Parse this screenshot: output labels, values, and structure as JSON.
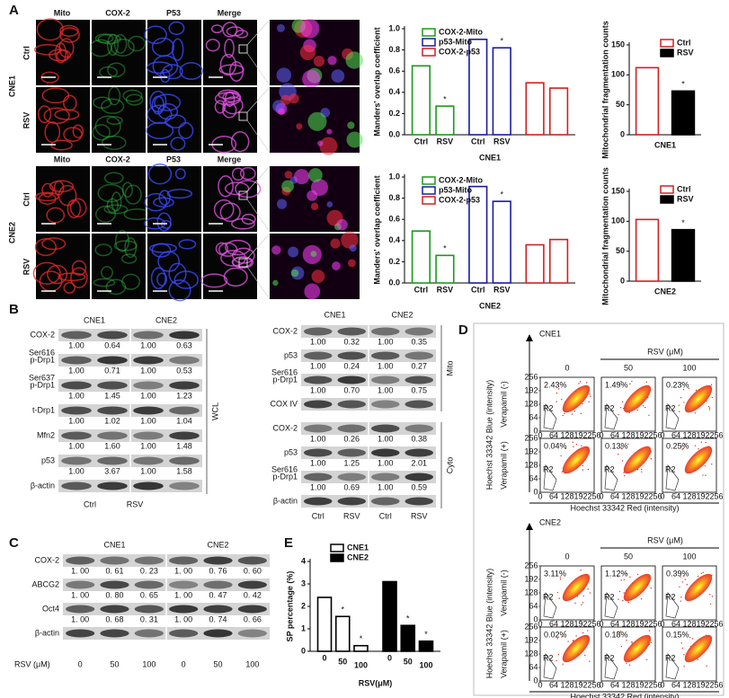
{
  "A": {
    "label": "A",
    "cne1": {
      "name": "CNE1",
      "columns": [
        "Mito",
        "COX-2",
        "P53",
        "Merge"
      ],
      "rows": [
        "Ctrl",
        "RSV"
      ]
    },
    "cne2": {
      "name": "CNE2",
      "columns": [
        "Mito",
        "COX-2",
        "P53",
        "Merge"
      ],
      "rows": [
        "Ctrl",
        "RSV"
      ]
    },
    "overlap1": {
      "ylabel": "Manders' overlap coefficient",
      "xlabel": "CNE1",
      "ylim": [
        0,
        1
      ],
      "yticks": [
        {
          "value": 0,
          "label": "0.0"
        },
        0.2,
        0.4,
        0.6,
        0.8,
        {
          "value": 1,
          "label": "1.0"
        }
      ],
      "categories": [
        "Ctrl",
        "RSV"
      ],
      "series": [
        {
          "name": "COX-2-Mito",
          "color": "#1a9a1a",
          "fill": "none",
          "values": [
            0.65,
            0.27
          ],
          "stars": [
            null,
            "*"
          ]
        },
        {
          "name": "p53-Mito",
          "color": "#1a1aa0",
          "fill": "none",
          "values": [
            0.9,
            0.82
          ],
          "stars": [
            null,
            "*"
          ]
        },
        {
          "name": "COX-2-p53",
          "color": "#d02020",
          "fill": "none",
          "values": [
            0.49,
            0.44
          ],
          "stars": [
            null,
            null
          ]
        }
      ]
    },
    "frag1": {
      "ylabel": "Mitochondrial fragmentation counts",
      "xlabel": "CNE1",
      "ylim": [
        0,
        150
      ],
      "yticks": [
        0,
        50,
        100,
        150
      ],
      "series": [
        {
          "name": "Ctrl",
          "color": "#d02020",
          "fill": "none",
          "values": [
            112
          ],
          "stars": [
            null
          ]
        },
        {
          "name": "RSV",
          "color": "#000000",
          "fill": "#000000",
          "values": [
            73
          ],
          "stars": [
            "*"
          ]
        }
      ]
    },
    "overlap2": {
      "ylabel": "Manders' overlap coefficient",
      "xlabel": "CNE2",
      "ylim": [
        0,
        1
      ],
      "yticks": [
        {
          "value": 0,
          "label": "0.0"
        },
        0.2,
        0.4,
        0.6,
        0.8,
        {
          "value": 1,
          "label": "1.0"
        }
      ],
      "categories": [
        "Ctrl",
        "RSV"
      ],
      "series": [
        {
          "name": "COX-2-Mito",
          "color": "#1a9a1a",
          "fill": "none",
          "values": [
            0.49,
            0.26
          ],
          "stars": [
            null,
            "*"
          ]
        },
        {
          "name": "p53-Mito",
          "color": "#1a1aa0",
          "fill": "none",
          "values": [
            0.91,
            0.77
          ],
          "stars": [
            null,
            "*"
          ]
        },
        {
          "name": "COX-2-p53",
          "color": "#d02020",
          "fill": "none",
          "values": [
            0.36,
            0.41
          ],
          "stars": [
            null,
            null
          ]
        }
      ]
    },
    "frag2": {
      "ylabel": "Mitochondrial fragmentation counts",
      "xlabel": "CNE2",
      "ylim": [
        0,
        150
      ],
      "yticks": [
        0,
        50,
        100,
        150
      ],
      "series": [
        {
          "name": "Ctrl",
          "color": "#d02020",
          "fill": "none",
          "values": [
            103
          ],
          "stars": [
            null
          ]
        },
        {
          "name": "RSV",
          "color": "#000000",
          "fill": "#000000",
          "values": [
            86
          ],
          "stars": [
            "*"
          ]
        }
      ]
    }
  },
  "B": {
    "label": "B",
    "left": {
      "header": [
        "CNE1",
        "CNE2"
      ],
      "side": "WCL",
      "lanes": [
        "Ctrl",
        "RSV"
      ],
      "rows": [
        {
          "name": "COX-2",
          "values": [
            "1.00",
            "0.64",
            "1.00",
            "0.63"
          ]
        },
        {
          "name": "p-Drp1",
          "sup": "Ser616",
          "values": [
            "1.00",
            "0.71",
            "1.00",
            "0.53"
          ]
        },
        {
          "name": "p-Drp1",
          "sup": "Ser637",
          "values": [
            "1.00",
            "1.45",
            "1.00",
            "1.23"
          ]
        },
        {
          "name": "t-Drp1",
          "values": [
            "1.00",
            "1.02",
            "1.00",
            "1.04"
          ]
        },
        {
          "name": "Mfn2",
          "values": [
            "1.00",
            "1.60",
            "1.00",
            "1.48"
          ]
        },
        {
          "name": "p53",
          "values": [
            "1.00",
            "3.67",
            "1.00",
            "1.58"
          ]
        },
        {
          "name": "β-actin"
        }
      ]
    },
    "right": {
      "header": [
        "CNE1",
        "CNE2"
      ],
      "lanes": [
        "Ctrl",
        "RSV",
        "Ctrl",
        "RSV"
      ],
      "mito": {
        "label": "Mito",
        "rows": [
          {
            "name": "COX-2",
            "values": [
              "1.00",
              "0.32",
              "1.00",
              "0.35"
            ]
          },
          {
            "name": "p53",
            "values": [
              "1.00",
              "0.24",
              "1.00",
              "0.27"
            ]
          },
          {
            "name": "p-Drp1",
            "sup": "Ser616",
            "values": [
              "1.00",
              "0.70",
              "1.00",
              "0.75"
            ]
          },
          {
            "name": "COX IV"
          }
        ]
      },
      "cyto": {
        "label": "Cyto",
        "rows": [
          {
            "name": "COX-2",
            "values": [
              "1.00",
              "0.26",
              "1.00",
              "0.38"
            ]
          },
          {
            "name": "p53",
            "values": [
              "1.00",
              "1.25",
              "1.00",
              "2.01"
            ]
          },
          {
            "name": "p-Drp1",
            "sup": "Ser616",
            "values": [
              "1.00",
              "0.69",
              "1.00",
              "0.59"
            ]
          },
          {
            "name": "β-actin"
          }
        ]
      }
    }
  },
  "C": {
    "label": "C",
    "header": [
      "CNE1",
      "CNE2"
    ],
    "rsv": "RSV (μM)",
    "doses": [
      "0",
      "50",
      "100",
      "0",
      "50",
      "100"
    ],
    "rows": [
      {
        "name": "COX-2",
        "values": [
          "1. 00",
          "0. 61",
          "0. 23",
          "1. 00",
          "0. 76",
          "0. 60"
        ]
      },
      {
        "name": "ABCG2",
        "values": [
          "1. 00",
          "0. 80",
          "0. 65",
          "1. 00",
          "0. 47",
          "0. 42"
        ]
      },
      {
        "name": "Oct4",
        "values": [
          "1. 00",
          "0. 68",
          "0. 31",
          "1. 00",
          "0. 74",
          "0. 66"
        ]
      },
      {
        "name": "β-actin"
      }
    ]
  },
  "D": {
    "label": "D",
    "rsv": "RSV (μM)",
    "doses": [
      "0",
      "50",
      "100"
    ],
    "gate": "R2",
    "ticks": [
      0,
      64,
      128,
      192,
      256
    ],
    "ylabel": "Hoechst 33342 Blue (intensity)",
    "xlabel": "Hoechst 33342 Red (intensity)",
    "plus": "Verapamil (+)",
    "minus": "Verapamil (-)",
    "blocks": [
      {
        "name": "CNE1",
        "percentages": [
          [
            "2.43%",
            "1.49%",
            "0.23%"
          ],
          [
            "0.04%",
            "0.13%",
            "0.25%"
          ]
        ]
      },
      {
        "name": "CNE2",
        "percentages": [
          [
            "3.11%",
            "1.12%",
            "0.39%"
          ],
          [
            "0.02%",
            "0.18%",
            "0.15%"
          ]
        ]
      }
    ]
  },
  "E": {
    "label": "E",
    "ylabel": "SP percentage (%)",
    "xlabel": "RSV(μM)",
    "ylim": [
      0,
      4
    ],
    "yticks": [
      0,
      1,
      2,
      3,
      4
    ],
    "categories": [
      "0",
      "50",
      "100"
    ],
    "series": [
      {
        "name": "CNE1",
        "color": "#000000",
        "fill": "#ffffff",
        "values": [
          2.4,
          1.55,
          0.25
        ],
        "stars": [
          null,
          "*",
          "*"
        ]
      },
      {
        "name": "CNE2",
        "color": "#000000",
        "fill": "#000000",
        "values": [
          3.1,
          1.15,
          0.45
        ],
        "stars": [
          null,
          "*",
          "*"
        ]
      }
    ]
  }
}
